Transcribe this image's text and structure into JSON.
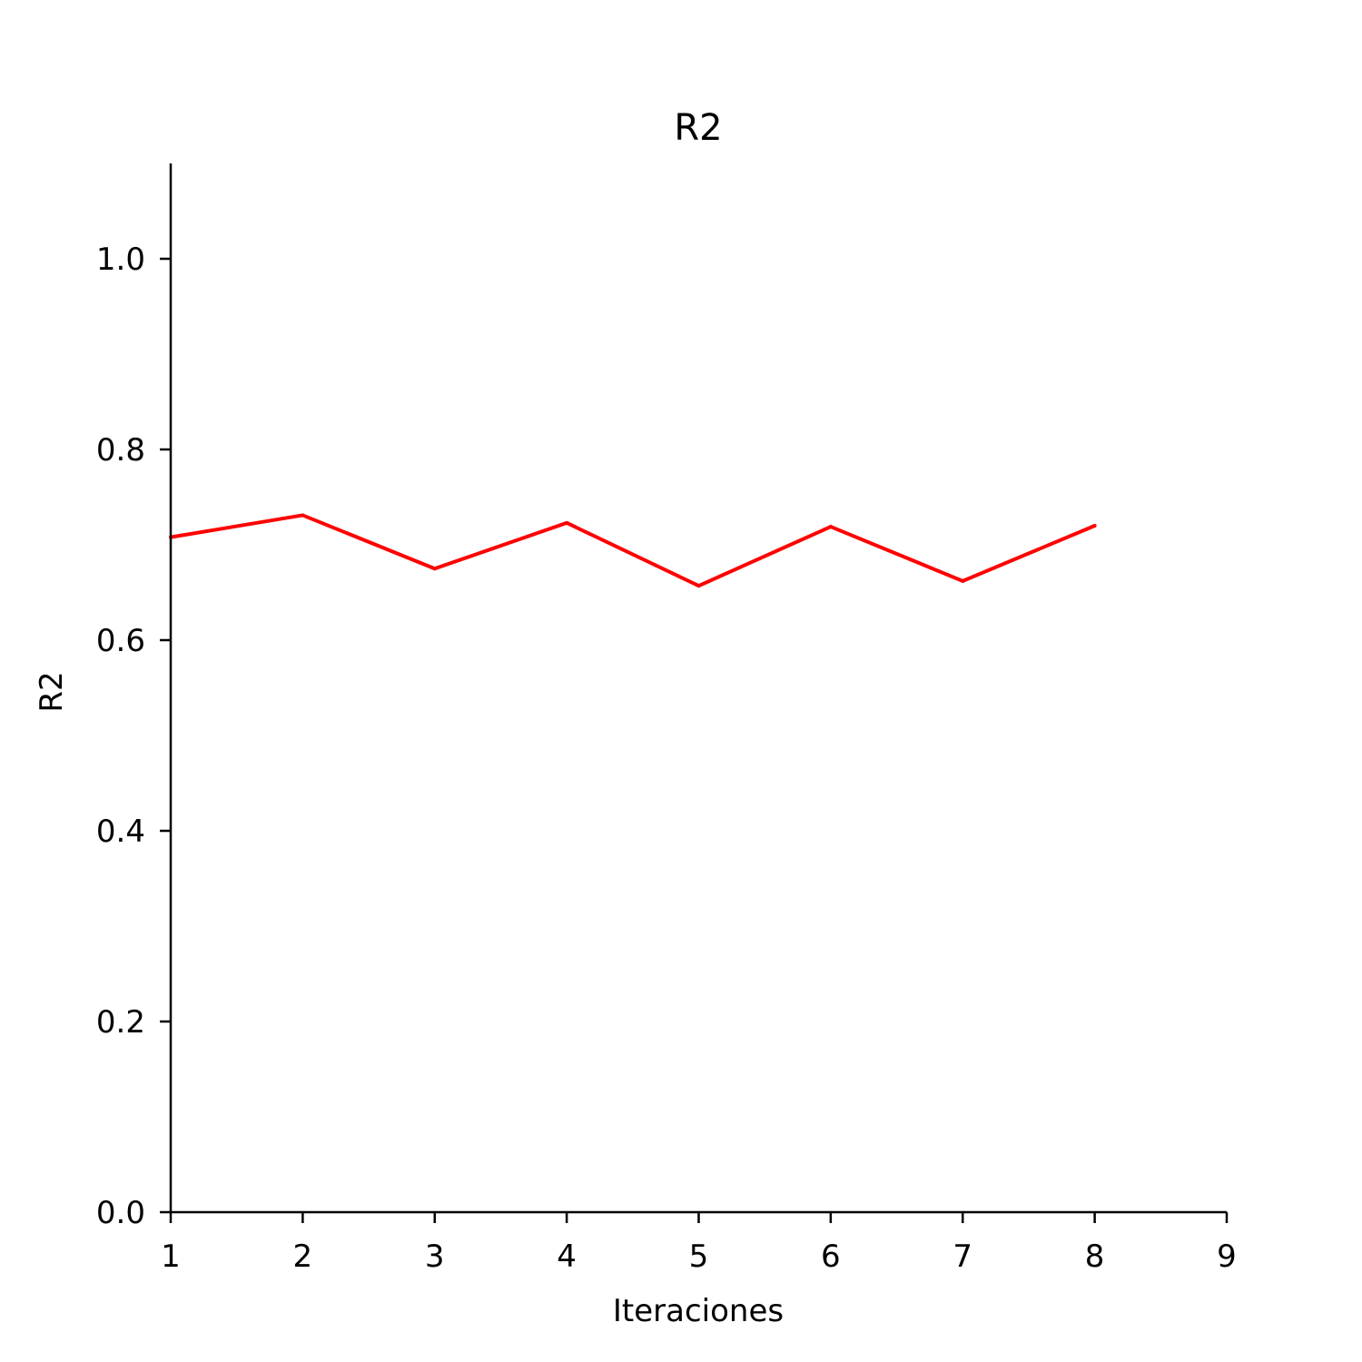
{
  "chart_data": {
    "type": "line",
    "title": "R2",
    "xlabel": "Iteraciones",
    "ylabel": "R2",
    "xlim": [
      1,
      9
    ],
    "ylim": [
      0,
      1.1
    ],
    "xticks": [
      1,
      2,
      3,
      4,
      5,
      6,
      7,
      8,
      9
    ],
    "xtick_labels": [
      "1",
      "2",
      "3",
      "4",
      "5",
      "6",
      "7",
      "8",
      "9"
    ],
    "yticks": [
      0.0,
      0.2,
      0.4,
      0.6,
      0.8,
      1.0
    ],
    "ytick_labels": [
      "0.0",
      "0.2",
      "0.4",
      "0.6",
      "0.8",
      "1.0"
    ],
    "grid": false,
    "series": [
      {
        "color": "#ff0000",
        "x": [
          1,
          2,
          3,
          4,
          5,
          6,
          7,
          8
        ],
        "y": [
          0.708,
          0.731,
          0.675,
          0.723,
          0.657,
          0.719,
          0.662,
          0.72
        ]
      }
    ]
  }
}
